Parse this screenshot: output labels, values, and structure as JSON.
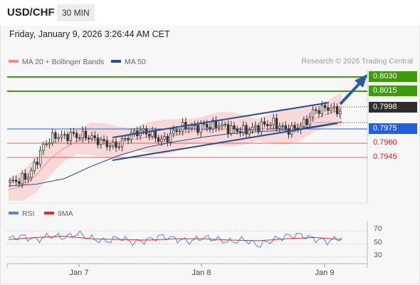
{
  "header": {
    "pair": "USD/CHF",
    "timeframe": "30 MIN"
  },
  "datetime": "Friday, January 9, 2026 3:26:44 AM CET",
  "legend": {
    "main": [
      {
        "label": "MA 20 + Bollinger Bands",
        "color": "#f28a8a"
      },
      {
        "label": "MA 50",
        "color": "#2a4d8f"
      }
    ],
    "rsi": [
      {
        "label": "RSI",
        "color": "#5b82d6"
      },
      {
        "label": "9MA",
        "color": "#e02b2b"
      }
    ]
  },
  "credit": "Research © 2026 Trading Central",
  "price_levels": [
    {
      "label": "0.8030",
      "style": "green",
      "kind": "target"
    },
    {
      "label": "0.8015",
      "style": "green",
      "kind": "target"
    },
    {
      "label": "0.7998",
      "style": "dark",
      "kind": "last"
    },
    {
      "label": "0.7975",
      "style": "blue",
      "kind": "pivot"
    },
    {
      "label": "0.7960",
      "style": "red",
      "kind": "support"
    },
    {
      "label": "0.7945",
      "style": "red",
      "kind": "support"
    }
  ],
  "rsi_ticks": [
    "70",
    "50",
    "30"
  ],
  "x_ticks": [
    "Jan 7",
    "Jan 8",
    "Jan 9"
  ],
  "colors": {
    "green": "#3f9b0b",
    "blue": "#1f5fe0",
    "red": "#d0262b",
    "channel": "#2a4d8f",
    "arrow": "#2a5aa8"
  },
  "chart_data": {
    "type": "line",
    "instrument": "USD/CHF",
    "timeframe": "30 MIN",
    "x_ticks": [
      "Jan 7",
      "Jan 8",
      "Jan 9"
    ],
    "price_ylim": [
      0.7893,
      0.8035
    ],
    "price_levels": [
      0.803,
      0.8015,
      0.7998,
      0.7975,
      0.796,
      0.7945
    ],
    "series": [
      {
        "name": "USD/CHF",
        "x": [
          0,
          10,
          20,
          30,
          40,
          50,
          60,
          70,
          80,
          90,
          100,
          110,
          120,
          130,
          140,
          150,
          160,
          170,
          180,
          190,
          200,
          210,
          220,
          230,
          240,
          250,
          260,
          270,
          280,
          290,
          300,
          310,
          320,
          330,
          340,
          350,
          360,
          370,
          380,
          390,
          400,
          410,
          420,
          430,
          440,
          450,
          460,
          470,
          480
        ],
        "values": [
          0.7912,
          0.7913,
          0.7916,
          0.792,
          0.7935,
          0.7952,
          0.796,
          0.7964,
          0.7962,
          0.7965,
          0.7963,
          0.7964,
          0.7961,
          0.7958,
          0.7955,
          0.7952,
          0.7954,
          0.7962,
          0.7966,
          0.7969,
          0.7967,
          0.7963,
          0.7958,
          0.7962,
          0.7969,
          0.7973,
          0.7974,
          0.7972,
          0.7975,
          0.7974,
          0.7976,
          0.7974,
          0.7971,
          0.797,
          0.7969,
          0.7971,
          0.7974,
          0.7976,
          0.7978,
          0.7975,
          0.797,
          0.7971,
          0.7974,
          0.798,
          0.7991,
          0.7993,
          0.7995,
          0.7992,
          0.7991
        ]
      },
      {
        "name": "MA 20",
        "x": [
          0,
          20,
          40,
          60,
          80,
          100,
          120,
          140,
          160,
          180,
          200,
          220,
          240,
          260,
          280,
          300,
          320,
          340,
          360,
          380,
          400,
          420,
          440,
          460,
          480
        ],
        "values": [
          0.7904,
          0.7908,
          0.792,
          0.7938,
          0.795,
          0.7958,
          0.796,
          0.7958,
          0.7957,
          0.796,
          0.7962,
          0.7962,
          0.7964,
          0.7968,
          0.797,
          0.7971,
          0.7971,
          0.797,
          0.797,
          0.7972,
          0.7973,
          0.7976,
          0.7982,
          0.7988,
          0.7993
        ]
      },
      {
        "name": "MA 50",
        "x": [
          0,
          40,
          80,
          120,
          160,
          200,
          240,
          280,
          320,
          360,
          400,
          440,
          480
        ],
        "values": [
          0.7908,
          0.791,
          0.7916,
          0.793,
          0.7942,
          0.7951,
          0.7957,
          0.7962,
          0.7966,
          0.7968,
          0.797,
          0.7974,
          0.7979
        ]
      },
      {
        "name": "RSI",
        "x": [
          0,
          20,
          40,
          60,
          80,
          100,
          120,
          140,
          160,
          180,
          200,
          220,
          240,
          260,
          280,
          300,
          320,
          340,
          360,
          380,
          400,
          420,
          440,
          460,
          480
        ],
        "values": [
          58,
          62,
          56,
          63,
          60,
          66,
          58,
          54,
          60,
          52,
          56,
          62,
          58,
          54,
          60,
          57,
          53,
          57,
          48,
          56,
          62,
          64,
          58,
          54,
          60
        ]
      },
      {
        "name": "9MA",
        "x": [
          0,
          40,
          80,
          120,
          160,
          200,
          240,
          280,
          320,
          360,
          400,
          440,
          480
        ],
        "values": [
          57,
          60,
          62,
          58,
          57,
          56,
          58,
          58,
          56,
          55,
          58,
          60,
          57
        ]
      }
    ],
    "rsi_ylim": [
      20,
      80
    ],
    "rsi_levels": [
      70,
      50,
      30
    ]
  }
}
